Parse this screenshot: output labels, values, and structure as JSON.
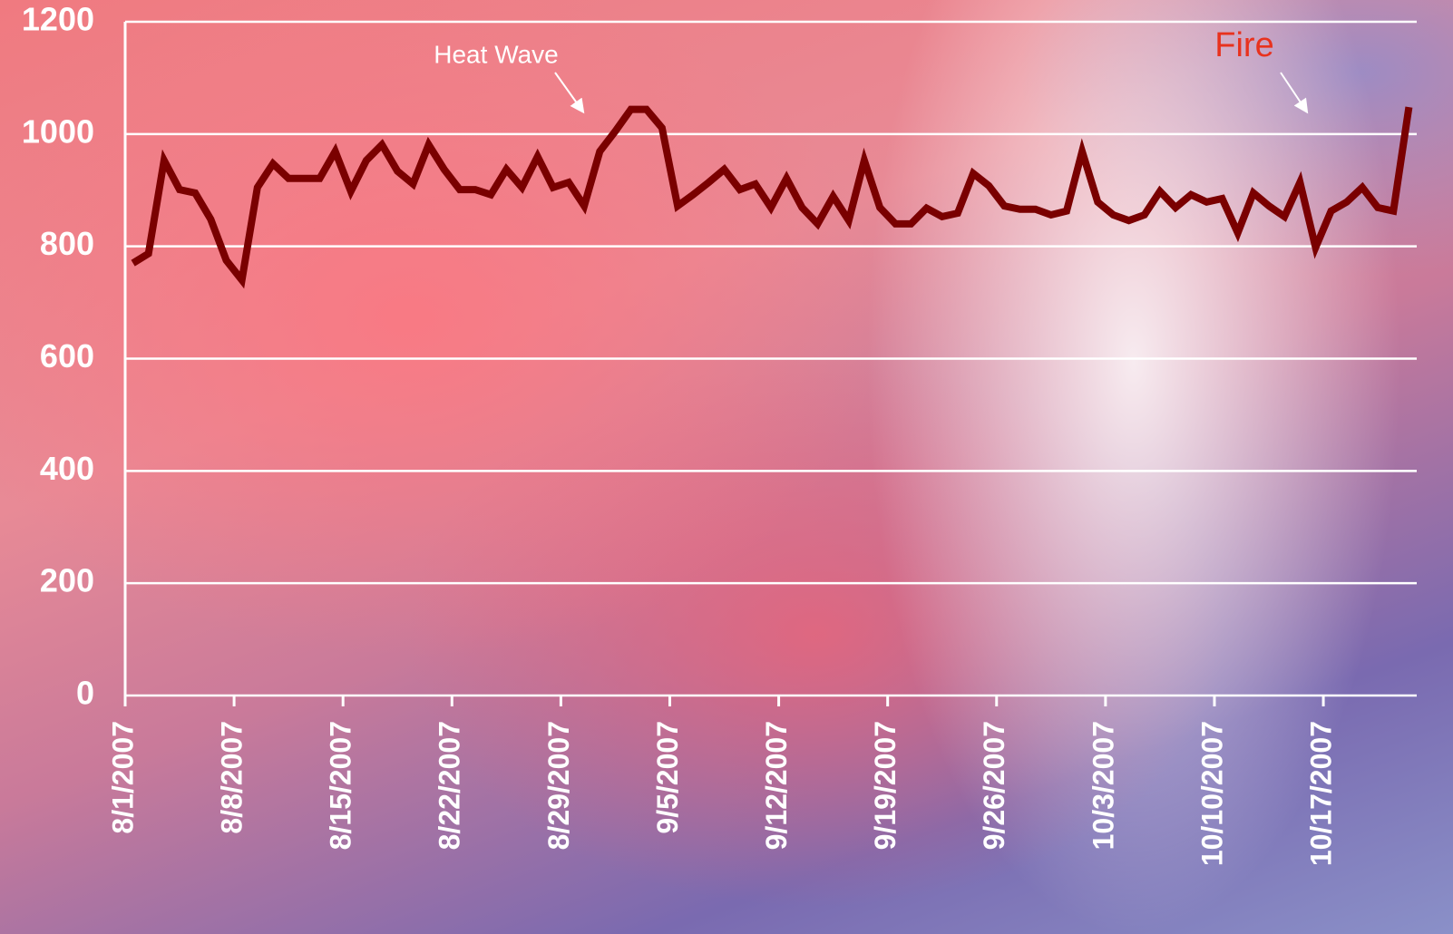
{
  "chart_data": {
    "type": "line",
    "categories": [
      "8/1/2007",
      null,
      null,
      null,
      null,
      null,
      null,
      "8/8/2007",
      null,
      null,
      null,
      null,
      null,
      null,
      "8/15/2007",
      null,
      null,
      null,
      null,
      null,
      null,
      "8/22/2007",
      null,
      null,
      null,
      null,
      null,
      null,
      "8/29/2007",
      null,
      null,
      null,
      null,
      null,
      null,
      "9/5/2007",
      null,
      null,
      null,
      null,
      null,
      null,
      "9/12/2007",
      null,
      null,
      null,
      null,
      null,
      null,
      "9/19/2007",
      null,
      null,
      null,
      null,
      null,
      null,
      "9/26/2007",
      null,
      null,
      null,
      null,
      null,
      null,
      "10/3/2007",
      null,
      null,
      null,
      null,
      null,
      null,
      "10/10/2007",
      null,
      null,
      null,
      null,
      null,
      null,
      "10/17/2007",
      null,
      null,
      null,
      null,
      null
    ],
    "series": [
      {
        "color": "#7a0000",
        "values": [
          770,
          787,
          953,
          901,
          895,
          848,
          775,
          740,
          905,
          947,
          921,
          921,
          921,
          969,
          898,
          953,
          981,
          934,
          911,
          981,
          937,
          901,
          901,
          892,
          937,
          905,
          960,
          905,
          914,
          872,
          969,
          1005,
          1044,
          1044,
          1011,
          872,
          892,
          914,
          937,
          901,
          911,
          869,
          921,
          869,
          840,
          889,
          846,
          953,
          869,
          840,
          840,
          868,
          853,
          859,
          930,
          908,
          872,
          866,
          866,
          856,
          863,
          969,
          879,
          856,
          846,
          856,
          898,
          869,
          892,
          879,
          885,
          824,
          895,
          872,
          853,
          914,
          798,
          863,
          879,
          905,
          869,
          863,
          1048
        ]
      }
    ],
    "ylim": [
      0,
      1200
    ],
    "yticks": [
      0,
      200,
      400,
      600,
      800,
      1000,
      1200
    ],
    "grid": true,
    "annotations": [
      "Heat Wave",
      "Fire"
    ]
  }
}
